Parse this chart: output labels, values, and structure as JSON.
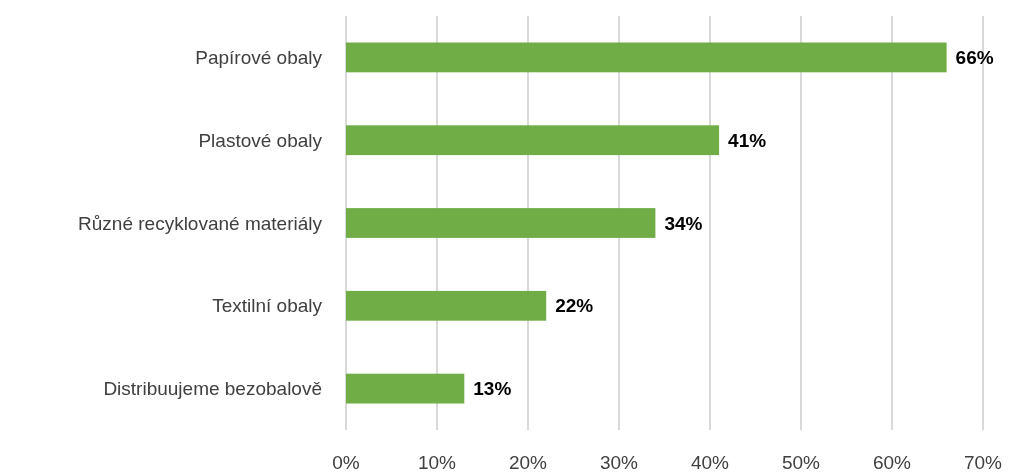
{
  "chart_data": {
    "type": "bar",
    "orientation": "horizontal",
    "categories": [
      "Papírové obaly",
      "Plastové obaly",
      "Různé recyklované materiály",
      "Textilní obaly",
      "Distribuujeme bezobalově"
    ],
    "values": [
      66,
      41,
      34,
      22,
      13
    ],
    "value_labels": [
      "66%",
      "41%",
      "34%",
      "22%",
      "13%"
    ],
    "color": "#70ad47",
    "xlim": [
      0,
      70
    ],
    "xticks": [
      {
        "value": 0,
        "label": "0%"
      },
      {
        "value": 10,
        "label": "10%"
      },
      {
        "value": 20,
        "label": "20%"
      },
      {
        "value": 30,
        "label": "30%"
      },
      {
        "value": 40,
        "label": "40%"
      },
      {
        "value": 50,
        "label": "50%"
      },
      {
        "value": 60,
        "label": "60%"
      },
      {
        "value": 70,
        "label": "70%"
      }
    ],
    "grid": "x"
  }
}
